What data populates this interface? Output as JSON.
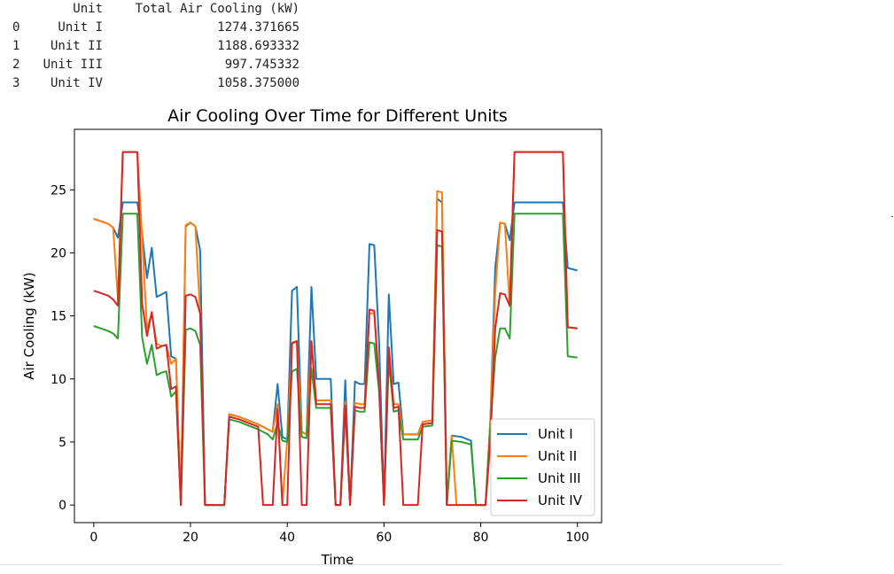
{
  "table": {
    "headers": [
      "",
      "Unit",
      "Total Air Cooling (kW)"
    ],
    "rows": [
      {
        "index": "0",
        "unit": "Unit I",
        "total": "1274.371665"
      },
      {
        "index": "1",
        "unit": "Unit II",
        "total": "1188.693332"
      },
      {
        "index": "2",
        "unit": "Unit III",
        "total": "997.745332"
      },
      {
        "index": "3",
        "unit": "Unit IV",
        "total": "1058.375000"
      }
    ]
  },
  "chart_data": {
    "type": "line",
    "title": "Air Cooling Over Time for Different Units",
    "xlabel": "Time",
    "ylabel": "Air Cooling (kW)",
    "xlim": [
      -4,
      105
    ],
    "ylim": [
      -1.4,
      29.8
    ],
    "xticks": [
      0,
      20,
      40,
      60,
      80,
      100
    ],
    "yticks": [
      0,
      5,
      10,
      15,
      20,
      25
    ],
    "legend_position": "lower-right",
    "series": [
      {
        "name": "Unit I",
        "color": "#1f77b4",
        "points": [
          [
            0,
            22.7
          ],
          [
            3,
            22.3
          ],
          [
            4,
            22
          ],
          [
            5,
            21.2
          ],
          [
            6,
            24
          ],
          [
            7,
            24
          ],
          [
            8,
            24
          ],
          [
            9,
            24
          ],
          [
            10,
            21.5
          ],
          [
            11,
            18
          ],
          [
            12,
            20.4
          ],
          [
            13,
            16.5
          ],
          [
            14,
            16.7
          ],
          [
            15,
            16.9
          ],
          [
            16,
            11.8
          ],
          [
            17,
            11.6
          ],
          [
            18,
            0
          ],
          [
            19,
            22.1
          ],
          [
            20,
            22.4
          ],
          [
            21,
            22.1
          ],
          [
            22,
            20.2
          ],
          [
            23,
            0
          ],
          [
            27,
            0
          ],
          [
            28,
            7.2
          ],
          [
            30,
            7
          ],
          [
            32,
            6.7
          ],
          [
            34,
            6.4
          ],
          [
            36,
            6
          ],
          [
            37,
            5.8
          ],
          [
            38,
            9.6
          ],
          [
            39,
            5.4
          ],
          [
            40,
            5.2
          ],
          [
            41,
            17
          ],
          [
            42,
            17.3
          ],
          [
            43,
            5.8
          ],
          [
            44,
            5.6
          ],
          [
            45,
            17.3
          ],
          [
            46,
            10
          ],
          [
            47,
            10
          ],
          [
            48,
            10
          ],
          [
            49,
            10
          ],
          [
            50,
            0
          ],
          [
            51,
            0
          ],
          [
            52,
            9.9
          ],
          [
            53,
            0
          ],
          [
            54,
            9.8
          ],
          [
            55,
            9.6
          ],
          [
            56,
            9.6
          ],
          [
            57,
            20.7
          ],
          [
            58,
            20.6
          ],
          [
            59,
            12.8
          ],
          [
            60,
            0
          ],
          [
            61,
            16.7
          ],
          [
            62,
            9.6
          ],
          [
            63,
            9.7
          ],
          [
            64,
            5.6
          ],
          [
            67,
            5.6
          ],
          [
            68,
            6.6
          ],
          [
            70,
            6.7
          ],
          [
            71,
            24.3
          ],
          [
            72,
            24
          ],
          [
            73,
            0
          ],
          [
            74,
            5.5
          ],
          [
            76,
            5.4
          ],
          [
            78,
            5.1
          ],
          [
            79,
            0
          ],
          [
            81,
            0
          ],
          [
            82,
            6.7
          ],
          [
            83,
            18.8
          ],
          [
            84,
            22.4
          ],
          [
            85,
            22.3
          ],
          [
            86,
            21
          ],
          [
            87,
            24
          ],
          [
            90,
            24
          ],
          [
            93,
            24
          ],
          [
            96,
            24
          ],
          [
            97,
            24
          ],
          [
            98,
            18.8
          ],
          [
            100,
            18.6
          ]
        ]
      },
      {
        "name": "Unit II",
        "color": "#ff7f0e",
        "points": [
          [
            0,
            22.7
          ],
          [
            3,
            22.3
          ],
          [
            4,
            22
          ],
          [
            5,
            16.3
          ],
          [
            6,
            28
          ],
          [
            7,
            28
          ],
          [
            8,
            28
          ],
          [
            9,
            28
          ],
          [
            10,
            21.2
          ],
          [
            11,
            14
          ],
          [
            12,
            15.2
          ],
          [
            13,
            12.8
          ],
          [
            14,
            12.6
          ],
          [
            15,
            12.7
          ],
          [
            16,
            11.2
          ],
          [
            17,
            11.6
          ],
          [
            18,
            0
          ],
          [
            19,
            22.2
          ],
          [
            20,
            22.4
          ],
          [
            21,
            22.1
          ],
          [
            22,
            15.2
          ],
          [
            23,
            0
          ],
          [
            27,
            0
          ],
          [
            28,
            7.2
          ],
          [
            30,
            7
          ],
          [
            32,
            6.7
          ],
          [
            34,
            6.4
          ],
          [
            36,
            6
          ],
          [
            37,
            5.8
          ],
          [
            38,
            8
          ],
          [
            39,
            0
          ],
          [
            40,
            5.2
          ],
          [
            41,
            12.9
          ],
          [
            42,
            13
          ],
          [
            43,
            5.8
          ],
          [
            44,
            5.6
          ],
          [
            45,
            12.9
          ],
          [
            46,
            8.3
          ],
          [
            47,
            8.3
          ],
          [
            48,
            8.3
          ],
          [
            49,
            8.3
          ],
          [
            50,
            0
          ],
          [
            51,
            0
          ],
          [
            52,
            8.2
          ],
          [
            53,
            0
          ],
          [
            54,
            8.1
          ],
          [
            55,
            8
          ],
          [
            56,
            8
          ],
          [
            57,
            15.2
          ],
          [
            58,
            15.2
          ],
          [
            59,
            9.6
          ],
          [
            60,
            0
          ],
          [
            61,
            12.5
          ],
          [
            62,
            8
          ],
          [
            63,
            8
          ],
          [
            64,
            5.6
          ],
          [
            67,
            5.6
          ],
          [
            68,
            6.6
          ],
          [
            70,
            6.7
          ],
          [
            71,
            24.9
          ],
          [
            72,
            24.8
          ],
          [
            73,
            0
          ],
          [
            74,
            5.5
          ],
          [
            75,
            0
          ],
          [
            78,
            0
          ],
          [
            79,
            0
          ],
          [
            81,
            0
          ],
          [
            82,
            6.7
          ],
          [
            83,
            16.8
          ],
          [
            84,
            22.4
          ],
          [
            85,
            22.3
          ],
          [
            86,
            15.8
          ],
          [
            87,
            28
          ],
          [
            90,
            28
          ],
          [
            93,
            28
          ],
          [
            96,
            28
          ],
          [
            97,
            28
          ],
          [
            98,
            14.1
          ],
          [
            100,
            14
          ]
        ]
      },
      {
        "name": "Unit III",
        "color": "#2ca02c",
        "points": [
          [
            0,
            14.2
          ],
          [
            3,
            13.8
          ],
          [
            4,
            13.6
          ],
          [
            5,
            13.2
          ],
          [
            6,
            23.1
          ],
          [
            7,
            23.1
          ],
          [
            8,
            23.1
          ],
          [
            9,
            23.1
          ],
          [
            10,
            13.3
          ],
          [
            11,
            11.2
          ],
          [
            12,
            12.7
          ],
          [
            13,
            10.3
          ],
          [
            14,
            10.5
          ],
          [
            15,
            10.6
          ],
          [
            16,
            8.6
          ],
          [
            17,
            9
          ],
          [
            18,
            0
          ],
          [
            19,
            13.9
          ],
          [
            20,
            14
          ],
          [
            21,
            13.8
          ],
          [
            22,
            12.7
          ],
          [
            23,
            0
          ],
          [
            27,
            0
          ],
          [
            28,
            6.8
          ],
          [
            30,
            6.6
          ],
          [
            32,
            6.3
          ],
          [
            34,
            6
          ],
          [
            36,
            5.6
          ],
          [
            37,
            5.2
          ],
          [
            38,
            6.5
          ],
          [
            39,
            5.1
          ],
          [
            40,
            5
          ],
          [
            41,
            10.6
          ],
          [
            42,
            10.8
          ],
          [
            43,
            5.4
          ],
          [
            44,
            5.3
          ],
          [
            45,
            10.8
          ],
          [
            46,
            7.7
          ],
          [
            47,
            7.7
          ],
          [
            48,
            7.7
          ],
          [
            49,
            7.7
          ],
          [
            50,
            0
          ],
          [
            51,
            0
          ],
          [
            52,
            7.6
          ],
          [
            53,
            0
          ],
          [
            54,
            7.5
          ],
          [
            55,
            7.4
          ],
          [
            56,
            7.4
          ],
          [
            57,
            12.9
          ],
          [
            58,
            12.8
          ],
          [
            59,
            9
          ],
          [
            60,
            0
          ],
          [
            61,
            11.5
          ],
          [
            62,
            7.4
          ],
          [
            63,
            7.5
          ],
          [
            64,
            5.2
          ],
          [
            67,
            5.2
          ],
          [
            68,
            6.2
          ],
          [
            70,
            6.3
          ],
          [
            71,
            20.6
          ],
          [
            72,
            20.5
          ],
          [
            73,
            0
          ],
          [
            74,
            5.1
          ],
          [
            76,
            5
          ],
          [
            78,
            4.8
          ],
          [
            79,
            0
          ],
          [
            81,
            0
          ],
          [
            82,
            6.2
          ],
          [
            83,
            11.7
          ],
          [
            84,
            14
          ],
          [
            85,
            14
          ],
          [
            86,
            13.2
          ],
          [
            87,
            23.1
          ],
          [
            90,
            23.1
          ],
          [
            93,
            23.1
          ],
          [
            96,
            23.1
          ],
          [
            97,
            23.1
          ],
          [
            98,
            11.8
          ],
          [
            100,
            11.7
          ]
        ]
      },
      {
        "name": "Unit IV",
        "color": "#d62728",
        "points": [
          [
            0,
            17
          ],
          [
            3,
            16.6
          ],
          [
            4,
            16.3
          ],
          [
            5,
            15.8
          ],
          [
            6,
            28
          ],
          [
            7,
            28
          ],
          [
            8,
            28
          ],
          [
            9,
            28
          ],
          [
            10,
            16
          ],
          [
            11,
            13.4
          ],
          [
            12,
            15.3
          ],
          [
            13,
            12.4
          ],
          [
            14,
            12.6
          ],
          [
            15,
            12.7
          ],
          [
            16,
            9.2
          ],
          [
            17,
            9.4
          ],
          [
            18,
            0
          ],
          [
            19,
            16.6
          ],
          [
            20,
            16.7
          ],
          [
            21,
            16.5
          ],
          [
            22,
            15.2
          ],
          [
            23,
            0
          ],
          [
            27,
            0
          ],
          [
            28,
            7
          ],
          [
            30,
            6.8
          ],
          [
            32,
            6.5
          ],
          [
            34,
            6.2
          ],
          [
            35,
            0
          ],
          [
            37,
            0
          ],
          [
            38,
            7.6
          ],
          [
            39,
            0
          ],
          [
            40,
            0
          ],
          [
            41,
            12.8
          ],
          [
            42,
            13
          ],
          [
            43,
            0
          ],
          [
            44,
            0
          ],
          [
            45,
            13
          ],
          [
            46,
            8
          ],
          [
            47,
            8
          ],
          [
            48,
            8
          ],
          [
            49,
            8
          ],
          [
            50,
            0
          ],
          [
            51,
            0
          ],
          [
            52,
            7.9
          ],
          [
            53,
            0
          ],
          [
            54,
            7.8
          ],
          [
            55,
            7.7
          ],
          [
            56,
            7.7
          ],
          [
            57,
            15.5
          ],
          [
            58,
            15.4
          ],
          [
            59,
            9.4
          ],
          [
            60,
            0
          ],
          [
            61,
            12.5
          ],
          [
            62,
            7.7
          ],
          [
            63,
            7.8
          ],
          [
            64,
            0
          ],
          [
            67,
            0
          ],
          [
            68,
            6.4
          ],
          [
            70,
            6.5
          ],
          [
            71,
            21.8
          ],
          [
            72,
            21.7
          ],
          [
            73,
            0
          ],
          [
            74,
            0
          ],
          [
            78,
            0
          ],
          [
            79,
            0
          ],
          [
            81,
            0
          ],
          [
            82,
            5
          ],
          [
            83,
            14
          ],
          [
            84,
            16.8
          ],
          [
            85,
            16.7
          ],
          [
            86,
            15.8
          ],
          [
            87,
            28
          ],
          [
            90,
            28
          ],
          [
            93,
            28
          ],
          [
            96,
            28
          ],
          [
            97,
            28
          ],
          [
            98,
            14.1
          ],
          [
            100,
            14
          ]
        ]
      }
    ]
  }
}
